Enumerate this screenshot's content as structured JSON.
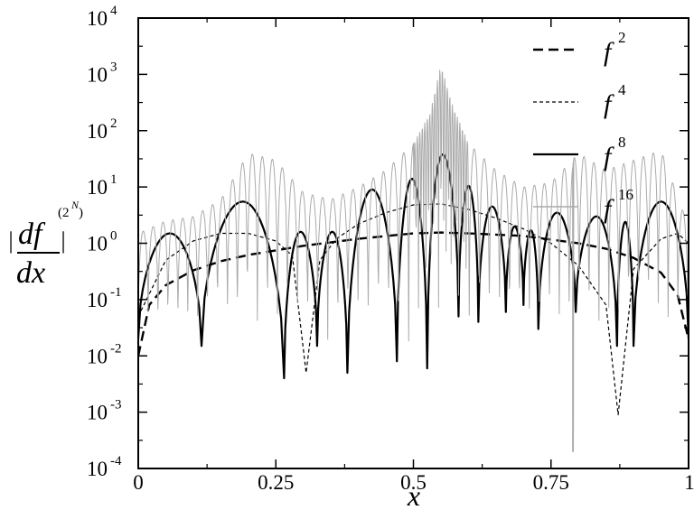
{
  "chart_data": {
    "type": "line",
    "yscale": "log",
    "xlim": [
      0,
      1
    ],
    "ylim": [
      0.0001,
      10000
    ],
    "grid": false,
    "legend_position": "top-right",
    "xlabel": "x",
    "ylabel": "|df^(2^N)/dx|",
    "x_ticks": [
      "0",
      "0.25",
      "0.5",
      "0.75",
      "1"
    ],
    "y_ticks": [
      {
        "base": "10",
        "exp": "-4"
      },
      {
        "base": "10",
        "exp": "-3"
      },
      {
        "base": "10",
        "exp": "-2"
      },
      {
        "base": "10",
        "exp": "-1"
      },
      {
        "base": "10",
        "exp": "0"
      },
      {
        "base": "10",
        "exp": "1"
      },
      {
        "base": "10",
        "exp": "2"
      },
      {
        "base": "10",
        "exp": "3"
      },
      {
        "base": "10",
        "exp": "4"
      }
    ],
    "series": [
      {
        "name": "f^2",
        "label_base": "f",
        "label_exp": "2",
        "style": "long-dash",
        "color": "#000000",
        "x": [
          0.0,
          0.02,
          0.05,
          0.1,
          0.15,
          0.2,
          0.3,
          0.4,
          0.5,
          0.55,
          0.6,
          0.7,
          0.8,
          0.85,
          0.9,
          0.95,
          0.98,
          1.0
        ],
        "y": [
          0.01,
          0.08,
          0.18,
          0.33,
          0.48,
          0.62,
          0.9,
          1.2,
          1.5,
          1.55,
          1.5,
          1.35,
          1.0,
          0.8,
          0.55,
          0.3,
          0.12,
          0.02
        ]
      },
      {
        "name": "f^4",
        "label_base": "f",
        "label_exp": "4",
        "style": "dashed",
        "color": "#000000",
        "x": [
          0.0,
          0.05,
          0.1,
          0.15,
          0.2,
          0.25,
          0.28,
          0.305,
          0.33,
          0.36,
          0.4,
          0.45,
          0.5,
          0.55,
          0.6,
          0.65,
          0.7,
          0.75,
          0.8,
          0.85,
          0.872,
          0.9,
          0.95,
          0.98,
          1.0
        ],
        "y": [
          0.05,
          0.5,
          1.1,
          1.5,
          1.5,
          1.1,
          0.6,
          0.005,
          0.5,
          1.2,
          2.2,
          3.5,
          4.8,
          5.0,
          4.0,
          2.8,
          1.8,
          1.0,
          0.4,
          0.08,
          0.0009,
          0.35,
          1.2,
          1.5,
          1.0
        ]
      },
      {
        "name": "f^8",
        "label_base": "f",
        "label_exp": "8",
        "style": "solid-thick",
        "color": "#000000",
        "zeros": [
          0.115,
          0.265,
          0.325,
          0.38,
          0.47,
          0.525,
          0.582,
          0.618,
          0.668,
          0.7,
          0.727,
          0.795,
          0.87,
          0.9
        ],
        "zero_values": [
          0.015,
          0.004,
          0.015,
          0.005,
          0.008,
          0.006,
          0.05,
          0.04,
          0.06,
          0.08,
          0.03,
          0.06,
          0.015,
          0.015
        ],
        "peaks": [
          1.5,
          5.5,
          1.6,
          1.6,
          9.0,
          14.0,
          38.0,
          10.5,
          4.5,
          2.0,
          1.7,
          3.5,
          3.0,
          2.4,
          5.5
        ]
      },
      {
        "name": "f^16",
        "label_base": "f",
        "label_exp": "16",
        "style": "solid-thin",
        "color": "#aaaaaa",
        "noisy": true,
        "envelope_x": [
          0.0,
          0.05,
          0.1,
          0.15,
          0.2,
          0.25,
          0.3,
          0.35,
          0.4,
          0.45,
          0.5,
          0.53,
          0.55,
          0.57,
          0.6,
          0.65,
          0.7,
          0.75,
          0.8,
          0.85,
          0.9,
          0.95,
          1.0
        ],
        "envelope_peak": [
          1.5,
          2.5,
          3.0,
          6.0,
          40.0,
          30.0,
          8.0,
          6.0,
          10.0,
          20.0,
          60.0,
          200.0,
          1500.0,
          300.0,
          60.0,
          20.0,
          10.0,
          12.0,
          40.0,
          20.0,
          30.0,
          45.0,
          2.0
        ],
        "minimum_near": [
          0.79,
          0.0002
        ]
      }
    ]
  }
}
